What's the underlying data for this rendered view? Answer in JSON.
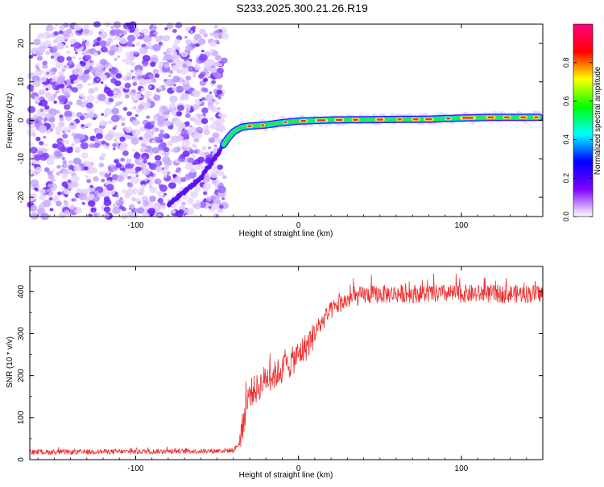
{
  "title": "S233.2025.300.21.26.R19",
  "chart_data": [
    {
      "type": "heatmap",
      "name": "spectrogram",
      "xlabel": "Height of straight line (km)",
      "ylabel": "Frequency (Hz)",
      "xlim": [
        -165,
        150
      ],
      "ylim": [
        -25,
        25
      ],
      "xticks": [
        -100,
        0,
        100
      ],
      "yticks": [
        -20,
        -10,
        0,
        10,
        20
      ],
      "colorbar": {
        "label": "Normalized spectral amplitude",
        "range": [
          0,
          1
        ],
        "ticks": [
          0.0,
          0.2,
          0.4,
          0.6,
          0.8
        ],
        "tick_labels": [
          "0.0",
          "0.2",
          "0.4",
          "0.6",
          "0.8"
        ],
        "colors": [
          "#ffffff",
          "#8000ff",
          "#0000ff",
          "#00ffff",
          "#00ff00",
          "#ffff00",
          "#ff0000",
          "#ff0080"
        ]
      },
      "description_points": {
        "noise_region_x": [
          -165,
          -45
        ],
        "signal_path": {
          "x": [
            -80,
            -60,
            -50,
            -44,
            -40,
            -35,
            -30,
            -20,
            -10,
            0,
            20,
            50,
            80,
            100,
            120,
            148
          ],
          "y": [
            -22,
            -15,
            -9,
            -5,
            -3,
            -1.8,
            -1.5,
            -1.2,
            -0.6,
            -0.2,
            0.1,
            0.2,
            0.3,
            0.6,
            0.8,
            0.8
          ]
        }
      }
    },
    {
      "type": "line",
      "name": "snr",
      "xlabel": "Height of straight line (km)",
      "ylabel": "SNR (10 * v/v)",
      "xlim": [
        -165,
        150
      ],
      "ylim": [
        0,
        460
      ],
      "xticks": [
        -100,
        0,
        100
      ],
      "yticks": [
        0,
        100,
        200,
        300,
        400
      ],
      "color": "#ee3030",
      "series": [
        {
          "name": "SNR",
          "x": [
            -165,
            -140,
            -120,
            -100,
            -80,
            -60,
            -40,
            -36,
            -33,
            -30,
            -25,
            -20,
            -15,
            -10,
            -5,
            0,
            5,
            10,
            15,
            20,
            25,
            30,
            40,
            60,
            80,
            100,
            120,
            150
          ],
          "values": [
            18,
            18,
            19,
            19,
            20,
            20,
            22,
            40,
            110,
            160,
            170,
            195,
            200,
            215,
            230,
            250,
            270,
            300,
            330,
            355,
            370,
            380,
            392,
            395,
            395,
            395,
            395,
            395
          ]
        }
      ]
    }
  ]
}
